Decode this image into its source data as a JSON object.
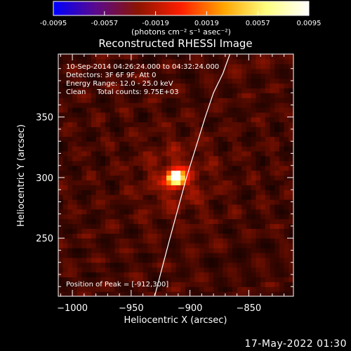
{
  "chart_data": {
    "type": "heatmap",
    "title": "Reconstructed RHESSI Image",
    "xlabel": "Heliocentric X (arcsec)",
    "ylabel": "Heliocentric Y (arcsec)",
    "xlim": [
      -1012,
      -812
    ],
    "ylim": [
      202,
      402
    ],
    "x_ticks": [
      -1000,
      -950,
      -900,
      -850
    ],
    "y_ticks": [
      250,
      300,
      350
    ],
    "colorbar": {
      "min": -0.0095,
      "max": 0.0095,
      "ticks": [
        "-0.0095",
        "-0.0057",
        "-0.0019",
        "0.0019",
        "0.0057",
        "0.0095"
      ],
      "units_label": "(photons cm⁻² s⁻¹ asec⁻²)",
      "colormap": [
        "#0000ff",
        "#5a0a8c",
        "#8c1400",
        "#ff1e00",
        "#ffa500",
        "#ffff80",
        "#ffffff"
      ]
    },
    "annotations": [
      "10-Sep-2014 04:26:24.000 to 04:32:24.000",
      "Detectors: 3F 6F 9F, Att 0",
      "Energy Range: 12.0 - 25.0 keV",
      "Clean     Total counts: 9.75E+03"
    ],
    "peak_label": "Position of Peak = [-912,300]",
    "peak": {
      "x": -912,
      "y": 300
    },
    "limb_curve": [
      [
        -930,
        202
      ],
      [
        -917,
        250
      ],
      [
        -903,
        300
      ],
      [
        -887,
        350
      ],
      [
        -880,
        370
      ],
      [
        -872,
        386
      ],
      [
        -866,
        402
      ]
    ],
    "footer": "17-May-2022 01:30"
  },
  "colors": {
    "background": "#000000",
    "foreground": "#ffffff"
  }
}
